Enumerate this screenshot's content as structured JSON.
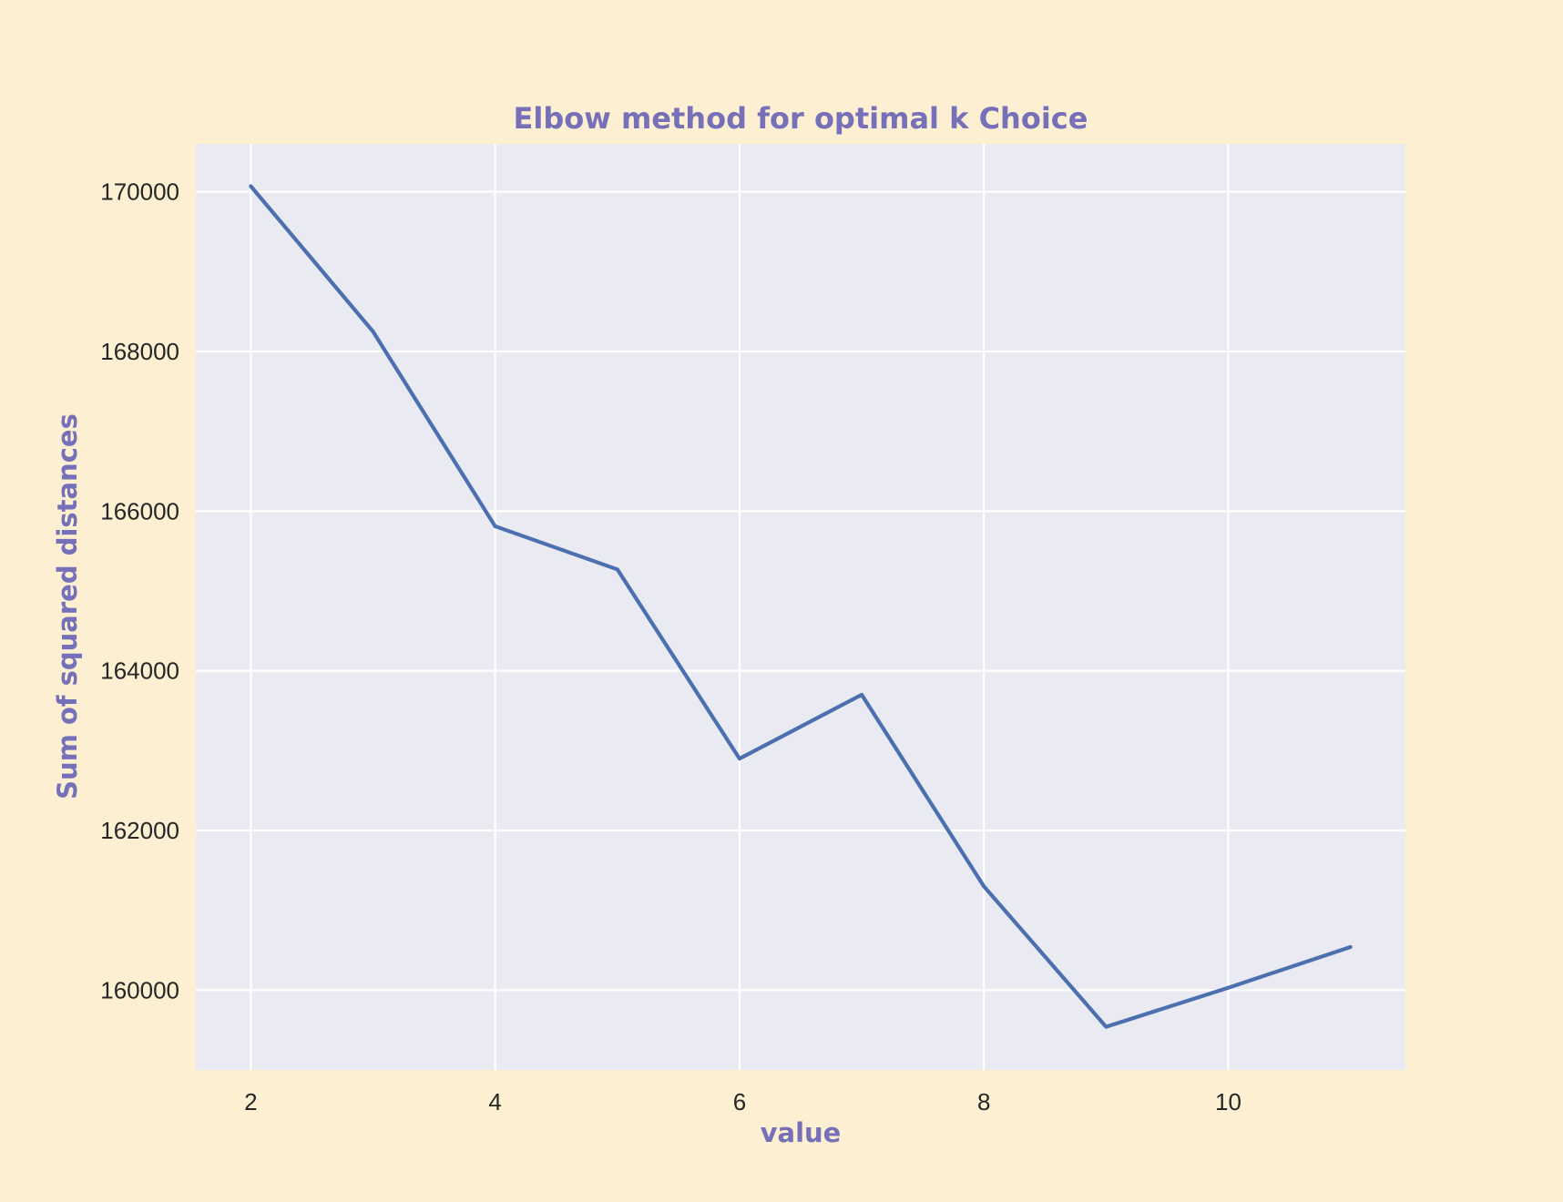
{
  "colors": {
    "figure_background": "#fdefd2",
    "plot_background": "#eaeaf2",
    "grid": "#ffffff",
    "line": "#4c6faf",
    "label_text": "#7570b8"
  },
  "chart_data": {
    "type": "line",
    "title": "Elbow method for optimal k Choice",
    "xlabel": "value",
    "ylabel": "Sum of squared distances",
    "x": [
      2,
      3,
      4,
      5,
      6,
      7,
      8,
      9,
      10,
      11
    ],
    "series": [
      {
        "values": [
          170070,
          168250,
          165810,
          165270,
          162900,
          163700,
          161300,
          159540,
          160030,
          160540
        ]
      }
    ],
    "xlim": [
      1.55,
      11.45
    ],
    "ylim": [
      159000,
      170600
    ],
    "xticks": [
      2,
      4,
      6,
      8,
      10
    ],
    "yticks": [
      160000,
      162000,
      164000,
      166000,
      168000,
      170000
    ],
    "xtick_labels": [
      "2",
      "4",
      "6",
      "8",
      "10"
    ],
    "ytick_labels": [
      "160000",
      "162000",
      "164000",
      "166000",
      "168000",
      "170000"
    ],
    "grid": true,
    "legend": "none"
  }
}
